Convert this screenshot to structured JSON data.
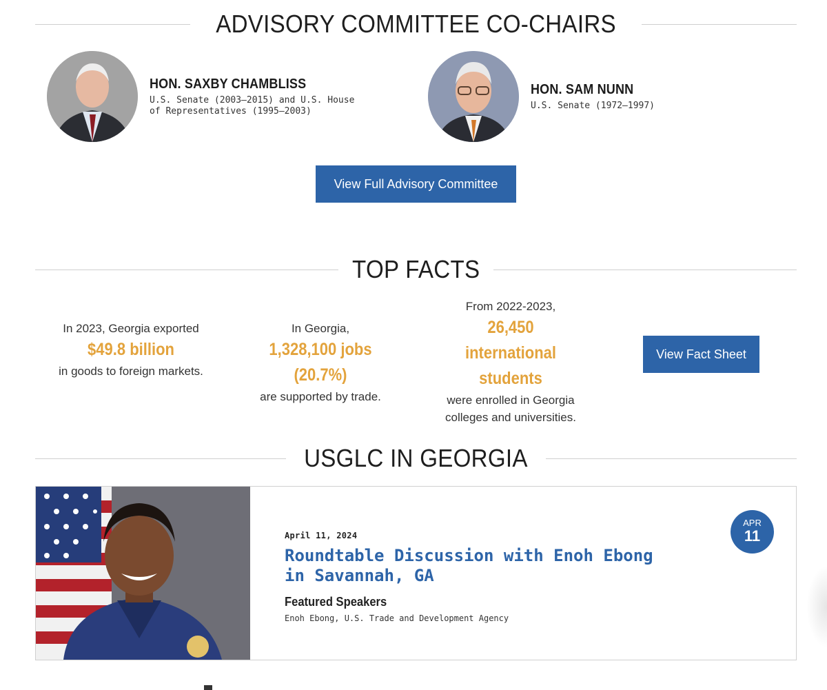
{
  "advisory": {
    "heading": "ADVISORY COMMITTEE CO-CHAIRS",
    "cochairs": [
      {
        "name": "HON. SAXBY CHAMBLISS",
        "role": "U.S. Senate (2003–2015) and U.S. House of Representatives (1995–2003)"
      },
      {
        "name": "HON. SAM NUNN",
        "role": "U.S. Senate (1972–1997)"
      }
    ],
    "button_label": "View Full Advisory Committee"
  },
  "facts": {
    "heading": "TOP FACTS",
    "items": [
      {
        "pre": "In 2023, Georgia exported",
        "highlight": "$49.8 billion",
        "post": "in goods to foreign markets."
      },
      {
        "pre": "In Georgia,",
        "highlight": "1,328,100 jobs (20.7%)",
        "post": "are supported by trade."
      },
      {
        "pre": "From 2022-2023,",
        "highlight": "26,450 international students",
        "post": "were enrolled in Georgia colleges and universities."
      }
    ],
    "button_label": "View Fact Sheet"
  },
  "usglc": {
    "heading": "USGLC IN GEORGIA",
    "event": {
      "date": "April 11, 2024",
      "title": "Roundtable Discussion with Enoh Ebong in Savannah, GA",
      "speakers_label": "Featured Speakers",
      "speakers": "Enoh Ebong, U.S. Trade and Development Agency",
      "badge_month": "APR",
      "badge_day": "11"
    }
  },
  "colors": {
    "accent_blue": "#2d64a8",
    "highlight_gold": "#e3a33c",
    "rule_gray": "#cfcfcf"
  }
}
